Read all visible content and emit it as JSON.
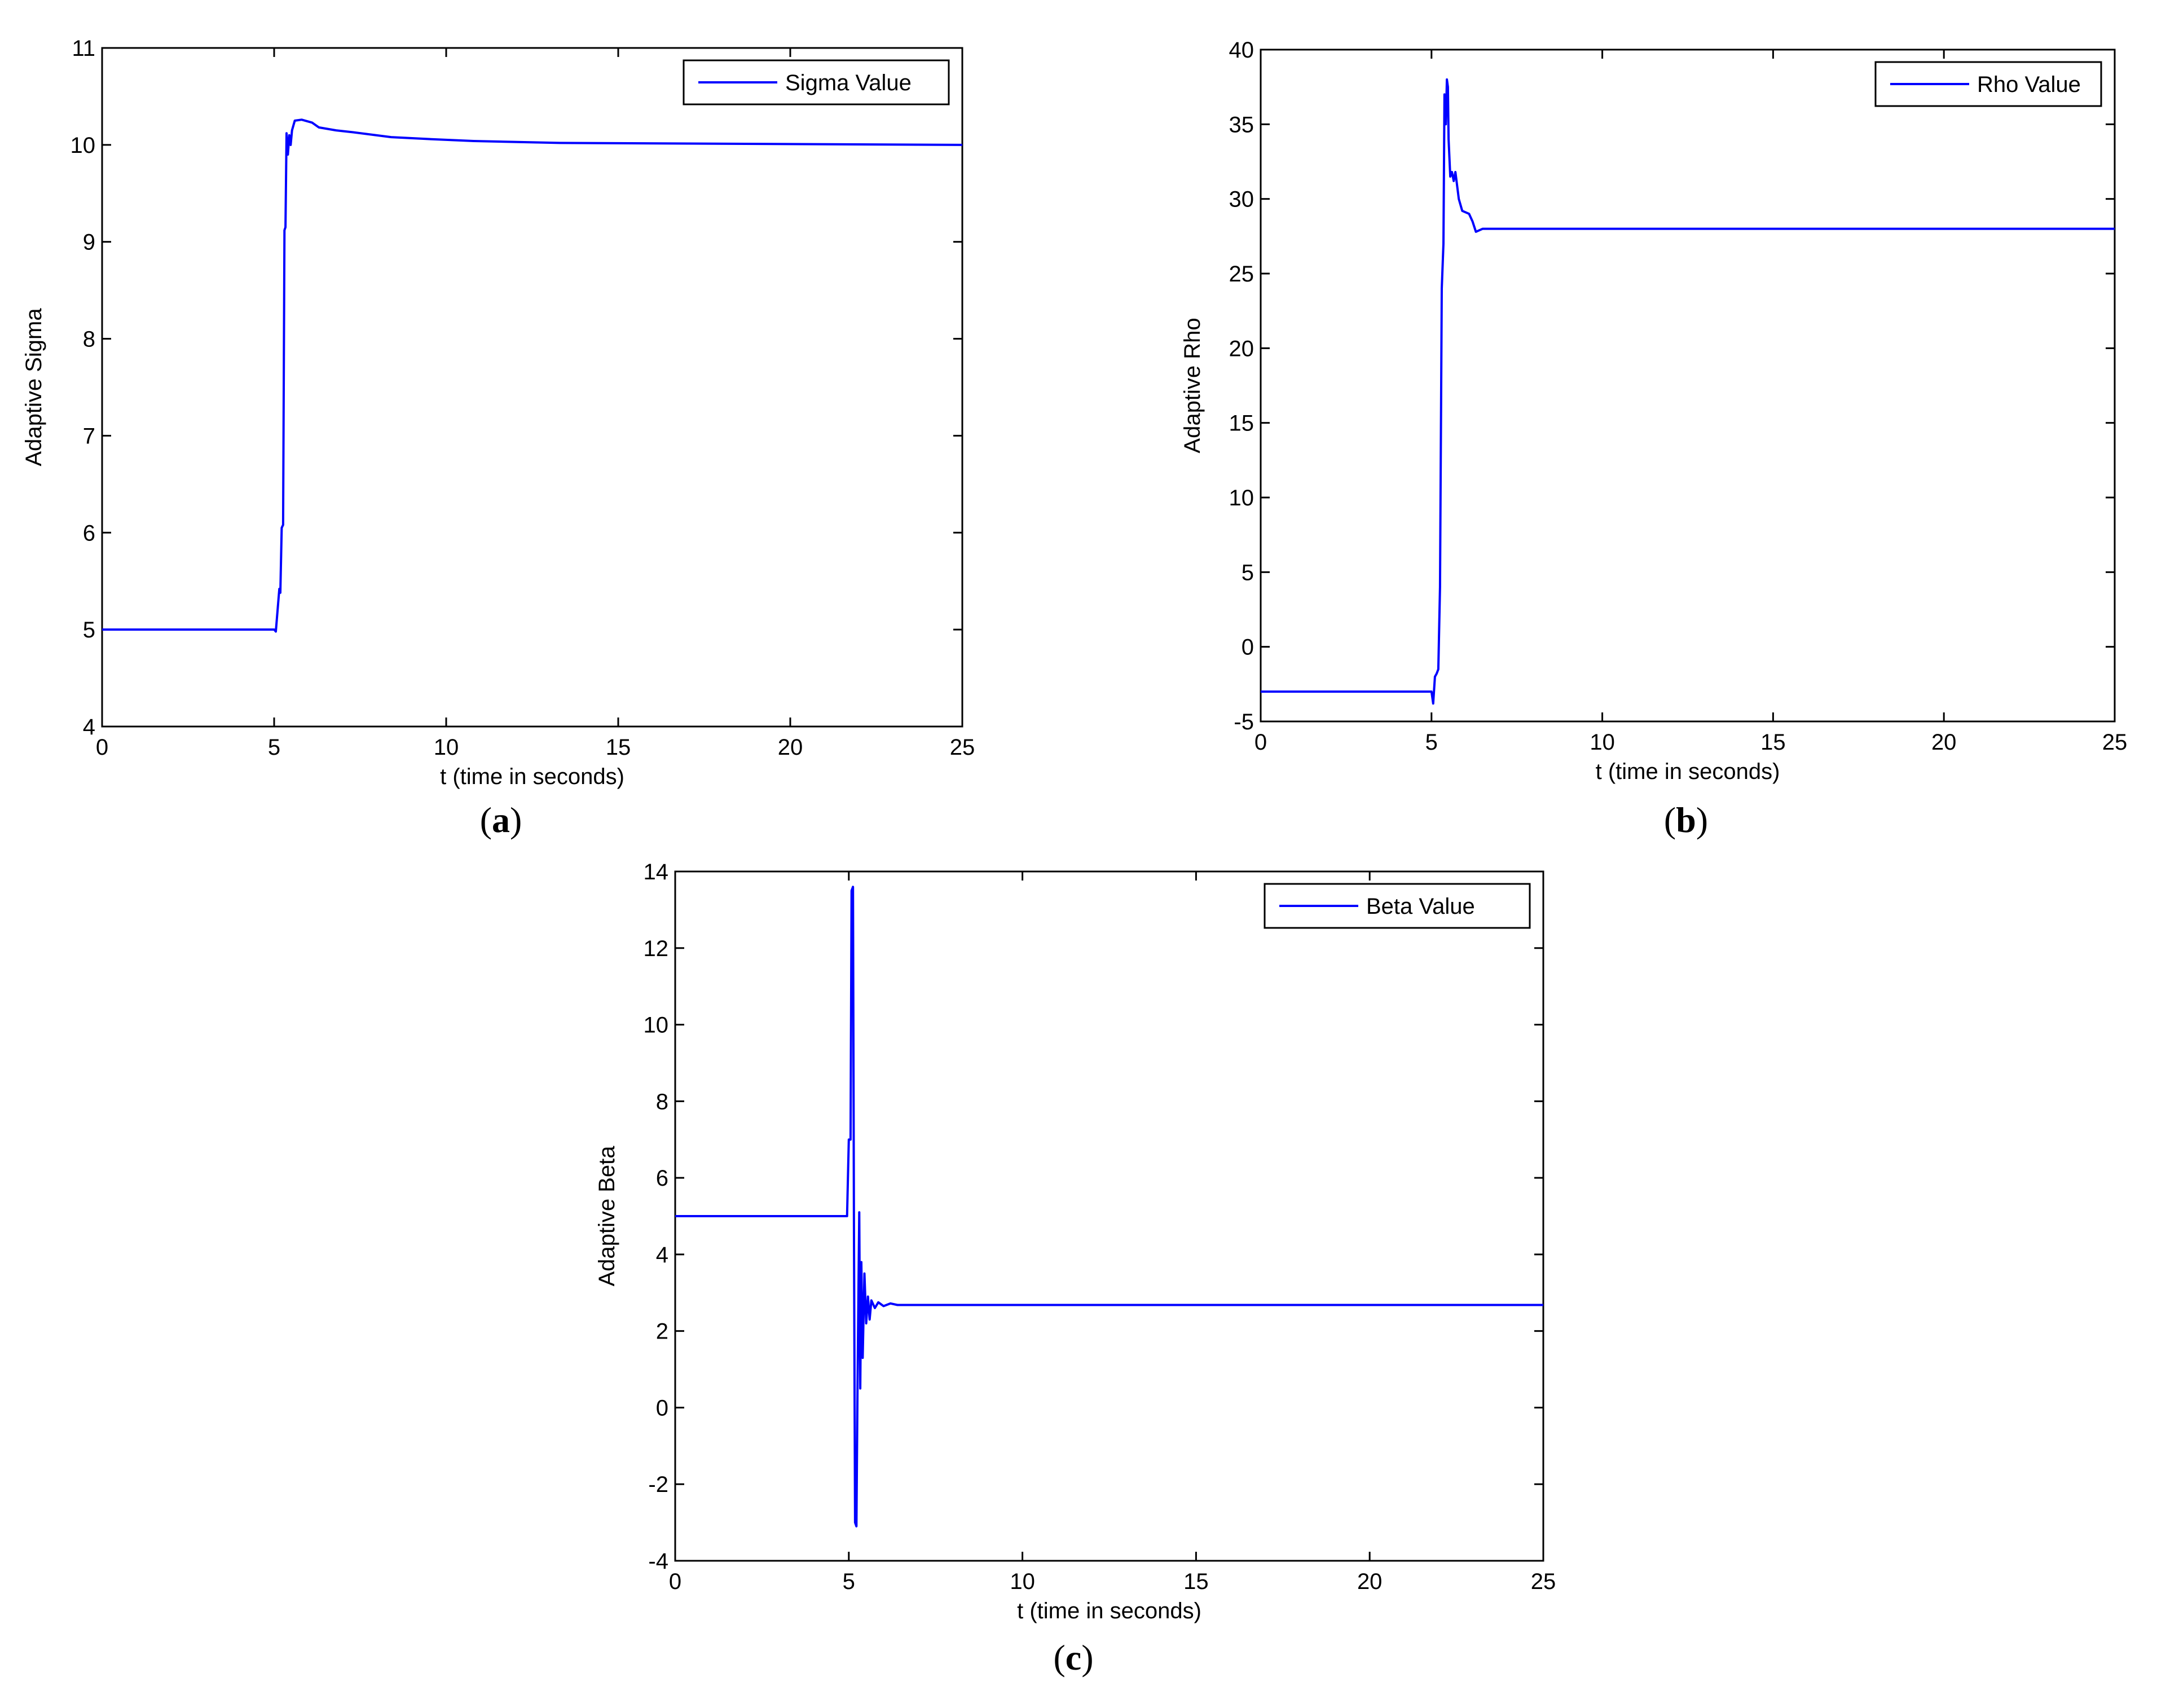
{
  "chart_data": [
    {
      "type": "line",
      "panel_label": "a",
      "xlabel": "t (time in seconds)",
      "ylabel": "Adaptive Sigma",
      "xlim": [
        0,
        25
      ],
      "ylim": [
        4,
        11
      ],
      "xticks": [
        0,
        5,
        10,
        15,
        20,
        25
      ],
      "yticks": [
        4,
        5,
        6,
        7,
        8,
        9,
        10,
        11
      ],
      "legend_position": "top-right",
      "grid": false,
      "series": [
        {
          "name": "Sigma Value",
          "color": "#0000ff",
          "points": [
            [
              0,
              5
            ],
            [
              5.0,
              5
            ],
            [
              5.05,
              4.98
            ],
            [
              5.1,
              5.2
            ],
            [
              5.15,
              5.42
            ],
            [
              5.18,
              5.38
            ],
            [
              5.22,
              6.05
            ],
            [
              5.26,
              6.08
            ],
            [
              5.3,
              9.12
            ],
            [
              5.33,
              9.15
            ],
            [
              5.36,
              10.12
            ],
            [
              5.4,
              9.9
            ],
            [
              5.44,
              10.1
            ],
            [
              5.48,
              10.0
            ],
            [
              5.52,
              10.15
            ],
            [
              5.6,
              10.25
            ],
            [
              5.8,
              10.26
            ],
            [
              6.1,
              10.23
            ],
            [
              6.3,
              10.18
            ],
            [
              6.8,
              10.15
            ],
            [
              7.3,
              10.13
            ],
            [
              8.4,
              10.08
            ],
            [
              9.5,
              10.06
            ],
            [
              10.8,
              10.04
            ],
            [
              13.3,
              10.02
            ],
            [
              25,
              10.0
            ]
          ]
        }
      ]
    },
    {
      "type": "line",
      "panel_label": "b",
      "xlabel": "t (time in seconds)",
      "ylabel": "Adaptive Rho",
      "xlim": [
        0,
        25
      ],
      "ylim": [
        -5,
        40
      ],
      "xticks": [
        0,
        5,
        10,
        15,
        20,
        25
      ],
      "yticks": [
        -5,
        0,
        5,
        10,
        15,
        20,
        25,
        30,
        35,
        40
      ],
      "legend_position": "top-right",
      "grid": false,
      "series": [
        {
          "name": "Rho Value",
          "color": "#0000ff",
          "points": [
            [
              0,
              -3
            ],
            [
              5.0,
              -3
            ],
            [
              5.05,
              -3.8
            ],
            [
              5.1,
              -2
            ],
            [
              5.15,
              -1.8
            ],
            [
              5.2,
              -1.5
            ],
            [
              5.25,
              4
            ],
            [
              5.3,
              24
            ],
            [
              5.35,
              27
            ],
            [
              5.38,
              37
            ],
            [
              5.42,
              35
            ],
            [
              5.45,
              38
            ],
            [
              5.48,
              37.5
            ],
            [
              5.5,
              34
            ],
            [
              5.55,
              31.5
            ],
            [
              5.6,
              31.8
            ],
            [
              5.65,
              31.2
            ],
            [
              5.7,
              31.8
            ],
            [
              5.8,
              30
            ],
            [
              5.9,
              29.2
            ],
            [
              6.1,
              29
            ],
            [
              6.2,
              28.5
            ],
            [
              6.3,
              27.8
            ],
            [
              6.5,
              28
            ],
            [
              25,
              28
            ]
          ]
        }
      ]
    },
    {
      "type": "line",
      "panel_label": "c",
      "xlabel": "t (time in seconds)",
      "ylabel": "Adaptive Beta",
      "xlim": [
        0,
        25
      ],
      "ylim": [
        -4,
        14
      ],
      "xticks": [
        0,
        5,
        10,
        15,
        20,
        25
      ],
      "yticks": [
        -4,
        -2,
        0,
        2,
        4,
        6,
        8,
        10,
        12,
        14
      ],
      "legend_position": "top-right",
      "grid": false,
      "series": [
        {
          "name": "Beta Value",
          "color": "#0000ff",
          "points": [
            [
              0,
              5
            ],
            [
              4.95,
              5
            ],
            [
              5.0,
              7
            ],
            [
              5.05,
              7
            ],
            [
              5.08,
              13.5
            ],
            [
              5.12,
              13.6
            ],
            [
              5.15,
              4.3
            ],
            [
              5.18,
              -3
            ],
            [
              5.22,
              -3.1
            ],
            [
              5.25,
              0.5
            ],
            [
              5.3,
              5.1
            ],
            [
              5.33,
              0.5
            ],
            [
              5.36,
              3.8
            ],
            [
              5.4,
              1.3
            ],
            [
              5.45,
              3.5
            ],
            [
              5.5,
              2.2
            ],
            [
              5.55,
              2.9
            ],
            [
              5.6,
              2.3
            ],
            [
              5.65,
              2.8
            ],
            [
              5.75,
              2.6
            ],
            [
              5.85,
              2.75
            ],
            [
              6.0,
              2.65
            ],
            [
              6.2,
              2.72
            ],
            [
              6.4,
              2.68
            ],
            [
              25,
              2.68
            ]
          ]
        }
      ]
    }
  ]
}
